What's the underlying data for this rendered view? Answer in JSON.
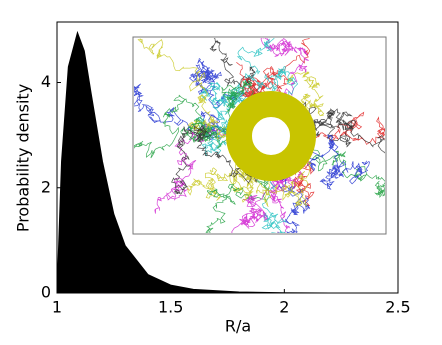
{
  "chart_data": {
    "type": "area",
    "xlabel": "R/a",
    "ylabel": "Probability density",
    "x": [
      1,
      1.02,
      1.05,
      1.09,
      1.12,
      1.15,
      1.2,
      1.25,
      1.3,
      1.4,
      1.5,
      1.6,
      1.8,
      2.0,
      2.2,
      2.5
    ],
    "values": [
      0,
      2.5,
      4.3,
      4.95,
      4.6,
      3.8,
      2.5,
      1.5,
      0.9,
      0.35,
      0.15,
      0.07,
      0.02,
      0.005,
      0,
      0
    ],
    "color": "#000000",
    "xlim": [
      1,
      2.5
    ],
    "xticks": [
      1,
      1.5,
      2,
      2.5
    ],
    "ylim": [
      0,
      5.15
    ],
    "yticks": [
      0,
      2,
      4
    ]
  }
}
